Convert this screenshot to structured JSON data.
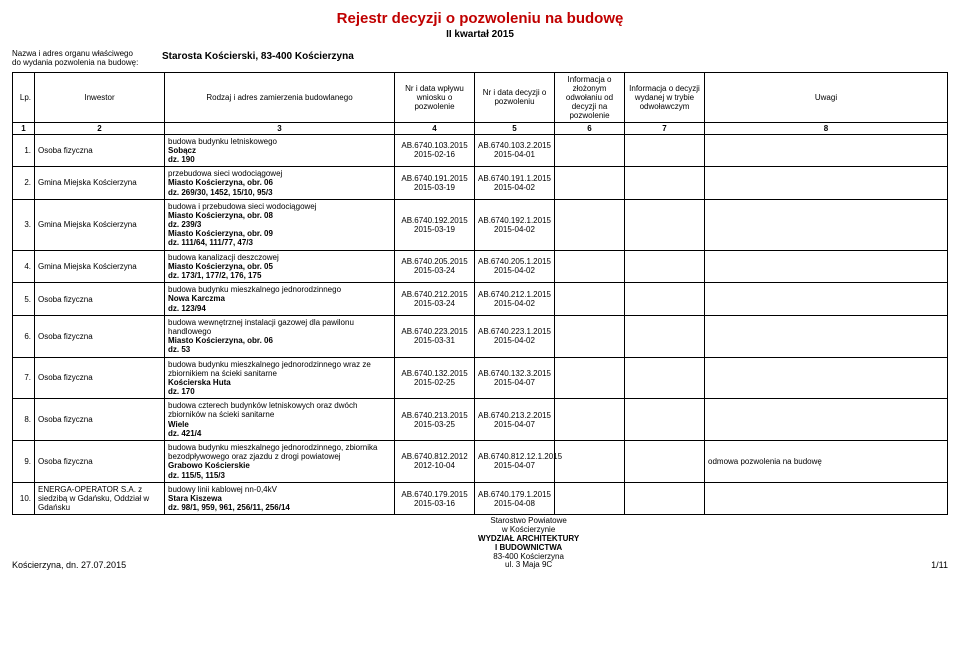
{
  "title": "Rejestr decyzji o pozwoleniu na budowę",
  "subtitle": "II kwartał 2015",
  "org_label_l1": "Nazwa i adres organu właściwego",
  "org_label_l2": "do wydania pozwolenia na budowę:",
  "org_value": "Starosta Kościerski, 83-400 Kościerzyna",
  "headers": {
    "lp": "Lp.",
    "inwestor": "Inwestor",
    "scope": "Rodzaj i adres zamierzenia budowlanego",
    "in": "Nr i data wpływu wniosku o pozwolenie",
    "dec": "Nr i data decyzji o pozwoleniu",
    "info1": "Informacja o złożonym odwołaniu od decyzji na pozwolenie",
    "info2": "Informacja o decyzji wydanej w trybie odwoławczym",
    "notes": "Uwagi"
  },
  "numrow": {
    "c1": "1",
    "c2": "2",
    "c3": "3",
    "c4": "4",
    "c5": "5",
    "c6": "6",
    "c7": "7",
    "c8": "8"
  },
  "rows": [
    {
      "lp": "1.",
      "inv": "Osoba fizyczna",
      "s1": "budowa budynku letniskowego",
      "s2": "Sobącz",
      "s3": "dz. 190",
      "in1": "AB.6740.103.2015",
      "in2": "2015-02-16",
      "d1": "AB.6740.103.2.2015",
      "d2": "2015-04-01",
      "i1": "",
      "i2": "",
      "n": ""
    },
    {
      "lp": "2.",
      "inv": "Gmina Miejska Kościerzyna",
      "s1": "przebudowa sieci wodociągowej",
      "s2": "Miasto Kościerzyna, obr. 06",
      "s3": "dz. 269/30, 1452, 15/10, 95/3",
      "in1": "AB.6740.191.2015",
      "in2": "2015-03-19",
      "d1": "AB.6740.191.1.2015",
      "d2": "2015-04-02",
      "i1": "",
      "i2": "",
      "n": ""
    },
    {
      "lp": "3.",
      "inv": "Gmina Miejska Kościerzyna",
      "s1": "budowa i przebudowa sieci wodociągowej",
      "s2": "Miasto Kościerzyna, obr. 08",
      "s3": "dz. 239/3",
      "s4": "Miasto Kościerzyna, obr. 09",
      "s5": "dz. 111/64, 111/77, 47/3",
      "in1": "AB.6740.192.2015",
      "in2": "2015-03-19",
      "d1": "AB.6740.192.1.2015",
      "d2": "2015-04-02",
      "i1": "",
      "i2": "",
      "n": ""
    },
    {
      "lp": "4.",
      "inv": "Gmina Miejska Kościerzyna",
      "s1": "budowa kanalizacji deszczowej",
      "s2": "Miasto Kościerzyna, obr. 05",
      "s3": "dz. 173/1, 177/2, 176, 175",
      "in1": "AB.6740.205.2015",
      "in2": "2015-03-24",
      "d1": "AB.6740.205.1.2015",
      "d2": "2015-04-02",
      "i1": "",
      "i2": "",
      "n": ""
    },
    {
      "lp": "5.",
      "inv": "Osoba fizyczna",
      "s1": "budowa budynku mieszkalnego jednorodzinnego",
      "s2": "Nowa Karczma",
      "s3": "dz. 123/94",
      "in1": "AB.6740.212.2015",
      "in2": "2015-03-24",
      "d1": "AB.6740.212.1.2015",
      "d2": "2015-04-02",
      "i1": "",
      "i2": "",
      "n": ""
    },
    {
      "lp": "6.",
      "inv": "Osoba fizyczna",
      "s1": "budowa wewnętrznej instalacji gazowej dla pawilonu handlowego",
      "s2": "Miasto Kościerzyna, obr. 06",
      "s3": "dz. 53",
      "in1": "AB.6740.223.2015",
      "in2": "2015-03-31",
      "d1": "AB.6740.223.1.2015",
      "d2": "2015-04-02",
      "i1": "",
      "i2": "",
      "n": ""
    },
    {
      "lp": "7.",
      "inv": "Osoba fizyczna",
      "s1": "budowa budynku mieszkalnego jednorodzinnego wraz ze zbiornikiem na ścieki sanitarne",
      "s2": "Kościerska Huta",
      "s3": "dz. 170",
      "in1": "AB.6740.132.2015",
      "in2": "2015-02-25",
      "d1": "AB.6740.132.3.2015",
      "d2": "2015-04-07",
      "i1": "",
      "i2": "",
      "n": ""
    },
    {
      "lp": "8.",
      "inv": "Osoba fizyczna",
      "s1": "budowa czterech budynków letniskowych oraz dwóch zbiorników na ścieki sanitarne",
      "s2": "Wiele",
      "s3": "dz. 421/4",
      "in1": "AB.6740.213.2015",
      "in2": "2015-03-25",
      "d1": "AB.6740.213.2.2015",
      "d2": "2015-04-07",
      "i1": "",
      "i2": "",
      "n": ""
    },
    {
      "lp": "9.",
      "inv": "Osoba fizyczna",
      "s1": "budowa budynku mieszkalnego jednorodzinnego, zbiornika bezodpływowego oraz zjazdu z drogi powiatowej",
      "s2": "Grabowo Kościerskie",
      "s3": "dz. 115/5, 115/3",
      "in1": "AB.6740.812.2012",
      "in2": "2012-10-04",
      "d1": "AB.6740.812.12.1.2015",
      "d2": "2015-04-07",
      "i1": "",
      "i2": "",
      "n": "odmowa pozwolenia na budowę"
    },
    {
      "lp": "10.",
      "inv": "ENERGA-OPERATOR S.A. z siedzibą w Gdańsku, Oddział w Gdańsku",
      "s1": "budowy linii kablowej nn-0,4kV",
      "s2": "Stara Kiszewa",
      "s3": "dz. 98/1, 959, 961, 256/11, 256/14",
      "in1": "AB.6740.179.2015",
      "in2": "2015-03-16",
      "d1": "AB.6740.179.1.2015",
      "d2": "2015-04-08",
      "i1": "",
      "i2": "",
      "n": ""
    }
  ],
  "footer": {
    "left": "Kościerzyna, dn. 27.07.2015",
    "c1": "Starostwo Powiatowe",
    "c2": "w Kościerzynie",
    "c3": "WYDZIAŁ ARCHITEKTURY",
    "c4": "I BUDOWNICTWA",
    "c5": "83-400 Kościerzyna",
    "c6": "ul. 3 Maja 9C",
    "right": "1/11"
  }
}
